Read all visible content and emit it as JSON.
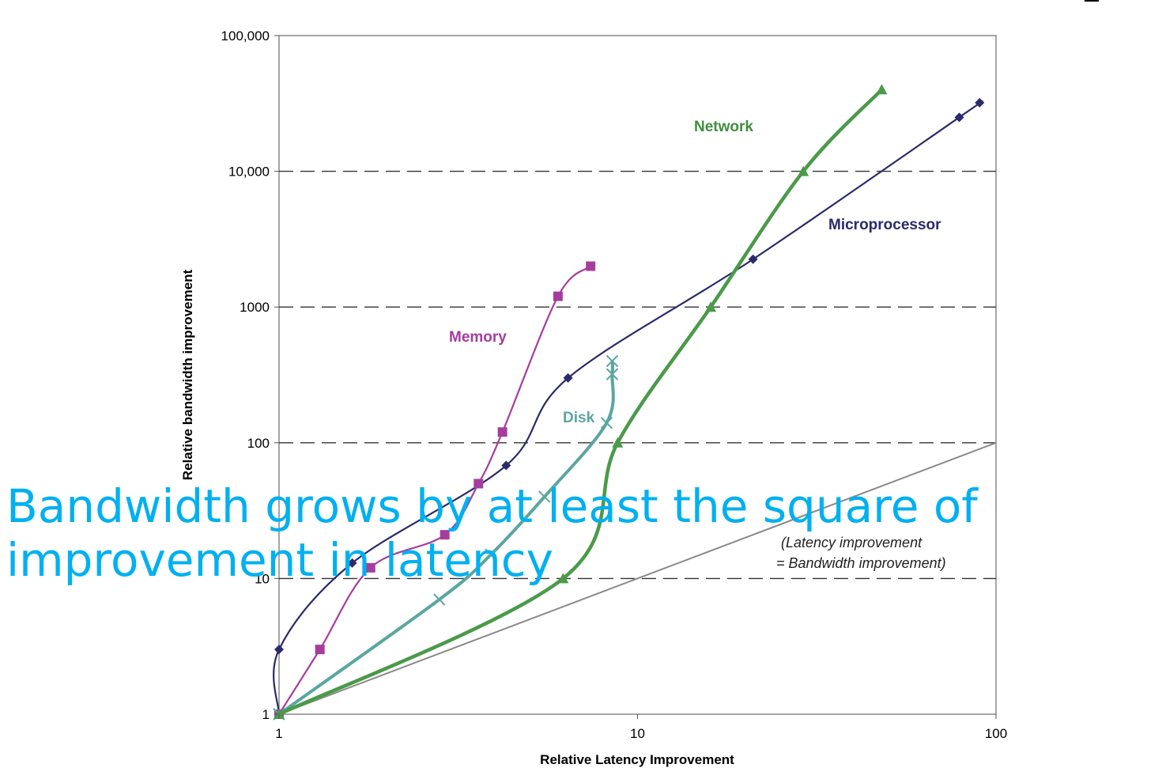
{
  "caption": "Bandwidth grows by at least the square of improvement in latency",
  "chart_data": {
    "type": "line",
    "xlabel": "Relative Latency Improvement",
    "ylabel": "Relative bandwidth improvement",
    "xscale": "log",
    "yscale": "log",
    "xlim": [
      1,
      100
    ],
    "ylim": [
      1,
      100000
    ],
    "x_ticks": [
      "1",
      "10",
      "100"
    ],
    "y_ticks": [
      "1",
      "10",
      "100",
      "1000",
      "10,000",
      "100,000"
    ],
    "grid": "dashed horizontal at 10, 100, 1000, 10,000",
    "series": [
      {
        "name": "Microprocessor",
        "color": "#2b2a6b",
        "marker": "diamond",
        "points": [
          [
            1,
            1
          ],
          [
            1,
            3
          ],
          [
            1.6,
            13
          ],
          [
            4.3,
            68
          ],
          [
            6.4,
            300
          ],
          [
            21,
            2250
          ],
          [
            79,
            25000
          ],
          [
            90,
            32000
          ]
        ]
      },
      {
        "name": "Memory",
        "color": "#a63d9e",
        "marker": "square",
        "points": [
          [
            1,
            1
          ],
          [
            1.3,
            3
          ],
          [
            1.8,
            12
          ],
          [
            2.9,
            21
          ],
          [
            3.6,
            50
          ],
          [
            4.2,
            120
          ],
          [
            6,
            1200
          ],
          [
            7.4,
            2000
          ]
        ]
      },
      {
        "name": "Disk",
        "color": "#5aa6a0",
        "marker": "x",
        "points": [
          [
            1,
            1
          ],
          [
            2.8,
            7
          ],
          [
            3.9,
            15
          ],
          [
            5.5,
            40
          ],
          [
            8.2,
            140
          ],
          [
            8.5,
            320
          ],
          [
            8.5,
            400
          ]
        ]
      },
      {
        "name": "Network",
        "color": "#4a9a4a",
        "marker": "triangle",
        "points": [
          [
            1,
            1
          ],
          [
            6.2,
            10
          ],
          [
            8.8,
            100
          ],
          [
            16,
            1000
          ],
          [
            29,
            10000
          ],
          [
            48,
            40000
          ]
        ]
      }
    ],
    "reference_line": {
      "label_line1": "(Latency improvement",
      "label_line2": "= Bandwidth improvement)",
      "points": [
        [
          1,
          1
        ],
        [
          100,
          100
        ]
      ]
    }
  }
}
